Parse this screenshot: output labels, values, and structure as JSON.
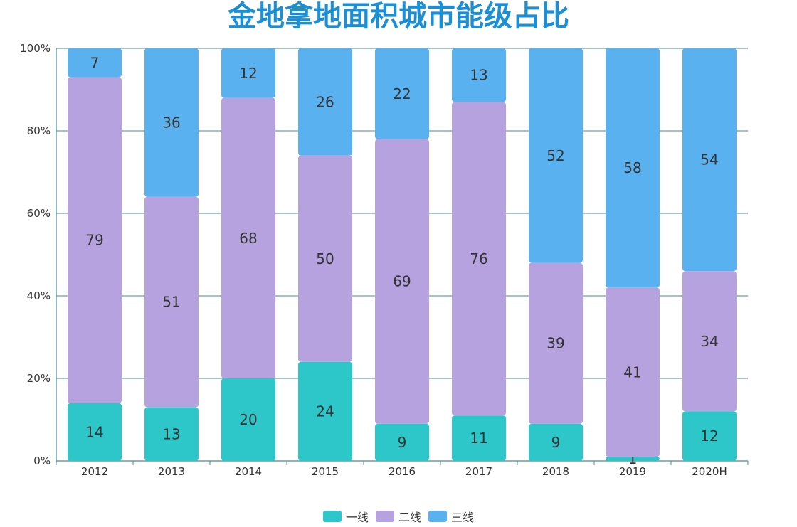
{
  "chart_data": {
    "type": "bar",
    "stacked": true,
    "percent_stacked": true,
    "title": "金地拿地面积城市能级占比",
    "categories": [
      "2012",
      "2013",
      "2014",
      "2015",
      "2016",
      "2017",
      "2018",
      "2019",
      "2020H"
    ],
    "series": [
      {
        "name": "一线",
        "color": "#2ec7c9",
        "values": [
          14,
          13,
          20,
          24,
          9,
          11,
          9,
          1,
          12
        ]
      },
      {
        "name": "二线",
        "color": "#b6a2de",
        "values": [
          79,
          51,
          68,
          50,
          69,
          76,
          39,
          41,
          34
        ]
      },
      {
        "name": "三线",
        "color": "#5ab1ef",
        "values": [
          7,
          36,
          12,
          26,
          22,
          13,
          52,
          58,
          54
        ]
      }
    ],
    "yticks": [
      "0%",
      "20%",
      "40%",
      "60%",
      "80%",
      "100%"
    ],
    "ylim": [
      0,
      100
    ],
    "grid": true,
    "legend_position": "bottom-center",
    "xlabel": "",
    "ylabel": ""
  }
}
